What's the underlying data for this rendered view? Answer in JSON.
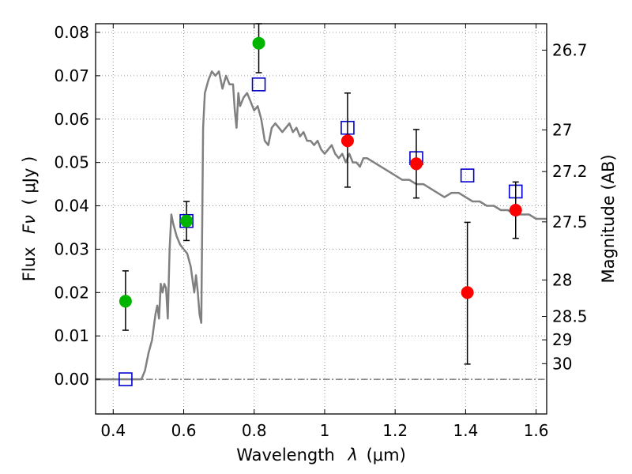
{
  "chart_data": {
    "type": "scatter",
    "xlabel_prefix": "Wavelength",
    "xlabel_symbol": "λ",
    "xlabel_unit": "(μm)",
    "ylabel_prefix": "Flux",
    "ylabel_symbol": "Fν",
    "ylabel_unit": "( μJy )",
    "y2label": "Magnitude (AB)",
    "xlim": [
      0.35,
      1.63
    ],
    "ylim": [
      -0.008,
      0.082
    ],
    "grid": true,
    "zero_line": true,
    "x_ticks": [
      0.4,
      0.6,
      0.8,
      1.0,
      1.2,
      1.4,
      1.6
    ],
    "x_tick_labels": [
      "0.4",
      "0.6",
      "0.8",
      "1",
      "1.2",
      "1.4",
      "1.6"
    ],
    "y_ticks": [
      0.0,
      0.01,
      0.02,
      0.03,
      0.04,
      0.05,
      0.06,
      0.07,
      0.08
    ],
    "y_tick_labels": [
      "0.00",
      "0.01",
      "0.02",
      "0.03",
      "0.04",
      "0.05",
      "0.06",
      "0.07",
      "0.08"
    ],
    "mag_ticks": [
      {
        "label": "26.7",
        "flux": 0.0759
      },
      {
        "label": "27",
        "flux": 0.0575
      },
      {
        "label": "27.2",
        "flux": 0.0479
      },
      {
        "label": "27.5",
        "flux": 0.0363
      },
      {
        "label": "28",
        "flux": 0.0229
      },
      {
        "label": "28.5",
        "flux": 0.0145
      },
      {
        "label": "29",
        "flux": 0.0091
      },
      {
        "label": "30",
        "flux": 0.0036
      }
    ],
    "colors": {
      "model": "#808080",
      "model_photometry": "#0000cc",
      "green_points": "#00b400",
      "red_points": "#ff0000",
      "errorbar": "#000000",
      "grid": "#999999"
    },
    "series": [
      {
        "kind": "line",
        "points": [
          [
            0.35,
            0.0
          ],
          [
            0.48,
            0.0
          ],
          [
            0.49,
            0.002
          ],
          [
            0.5,
            0.006
          ],
          [
            0.51,
            0.009
          ],
          [
            0.52,
            0.015
          ],
          [
            0.525,
            0.017
          ],
          [
            0.53,
            0.014
          ],
          [
            0.535,
            0.022
          ],
          [
            0.54,
            0.02
          ],
          [
            0.545,
            0.022
          ],
          [
            0.55,
            0.021
          ],
          [
            0.555,
            0.014
          ],
          [
            0.56,
            0.03
          ],
          [
            0.565,
            0.038
          ],
          [
            0.57,
            0.036
          ],
          [
            0.58,
            0.033
          ],
          [
            0.59,
            0.031
          ],
          [
            0.6,
            0.03
          ],
          [
            0.61,
            0.029
          ],
          [
            0.62,
            0.026
          ],
          [
            0.63,
            0.02
          ],
          [
            0.635,
            0.024
          ],
          [
            0.64,
            0.02
          ],
          [
            0.645,
            0.015
          ],
          [
            0.65,
            0.013
          ],
          [
            0.655,
            0.058
          ],
          [
            0.66,
            0.066
          ],
          [
            0.67,
            0.069
          ],
          [
            0.68,
            0.071
          ],
          [
            0.69,
            0.07
          ],
          [
            0.7,
            0.071
          ],
          [
            0.71,
            0.067
          ],
          [
            0.72,
            0.07
          ],
          [
            0.73,
            0.068
          ],
          [
            0.74,
            0.068
          ],
          [
            0.745,
            0.062
          ],
          [
            0.75,
            0.058
          ],
          [
            0.755,
            0.066
          ],
          [
            0.76,
            0.063
          ],
          [
            0.77,
            0.065
          ],
          [
            0.78,
            0.066
          ],
          [
            0.79,
            0.064
          ],
          [
            0.8,
            0.062
          ],
          [
            0.81,
            0.063
          ],
          [
            0.82,
            0.06
          ],
          [
            0.83,
            0.055
          ],
          [
            0.84,
            0.054
          ],
          [
            0.85,
            0.058
          ],
          [
            0.86,
            0.059
          ],
          [
            0.87,
            0.058
          ],
          [
            0.88,
            0.057
          ],
          [
            0.89,
            0.058
          ],
          [
            0.9,
            0.059
          ],
          [
            0.91,
            0.057
          ],
          [
            0.92,
            0.058
          ],
          [
            0.93,
            0.056
          ],
          [
            0.94,
            0.057
          ],
          [
            0.95,
            0.055
          ],
          [
            0.96,
            0.055
          ],
          [
            0.97,
            0.054
          ],
          [
            0.98,
            0.055
          ],
          [
            0.99,
            0.053
          ],
          [
            1.0,
            0.052
          ],
          [
            1.01,
            0.053
          ],
          [
            1.02,
            0.054
          ],
          [
            1.03,
            0.052
          ],
          [
            1.04,
            0.051
          ],
          [
            1.05,
            0.052
          ],
          [
            1.06,
            0.05
          ],
          [
            1.07,
            0.052
          ],
          [
            1.08,
            0.05
          ],
          [
            1.09,
            0.05
          ],
          [
            1.1,
            0.049
          ],
          [
            1.11,
            0.051
          ],
          [
            1.12,
            0.051
          ],
          [
            1.14,
            0.05
          ],
          [
            1.16,
            0.049
          ],
          [
            1.18,
            0.048
          ],
          [
            1.2,
            0.047
          ],
          [
            1.22,
            0.046
          ],
          [
            1.24,
            0.046
          ],
          [
            1.26,
            0.045
          ],
          [
            1.28,
            0.045
          ],
          [
            1.3,
            0.044
          ],
          [
            1.32,
            0.043
          ],
          [
            1.34,
            0.042
          ],
          [
            1.36,
            0.043
          ],
          [
            1.38,
            0.043
          ],
          [
            1.4,
            0.042
          ],
          [
            1.42,
            0.041
          ],
          [
            1.44,
            0.041
          ],
          [
            1.46,
            0.04
          ],
          [
            1.48,
            0.04
          ],
          [
            1.5,
            0.039
          ],
          [
            1.52,
            0.039
          ],
          [
            1.54,
            0.038
          ],
          [
            1.56,
            0.038
          ],
          [
            1.58,
            0.038
          ],
          [
            1.6,
            0.037
          ],
          [
            1.63,
            0.037
          ]
        ]
      },
      {
        "kind": "squares",
        "points": [
          [
            0.435,
            0.0
          ],
          [
            0.608,
            0.0365
          ],
          [
            0.813,
            0.068
          ],
          [
            1.065,
            0.058
          ],
          [
            1.26,
            0.051
          ],
          [
            1.405,
            0.047
          ],
          [
            1.542,
            0.0433
          ]
        ]
      },
      {
        "kind": "green_points",
        "points": [
          {
            "x": 0.435,
            "y": 0.018,
            "err": [
              0.0113,
              0.025
            ]
          },
          {
            "x": 0.608,
            "y": 0.0365,
            "err": [
              0.032,
              0.041
            ]
          },
          {
            "x": 0.813,
            "y": 0.0775,
            "err": [
              0.0707,
              0.082
            ]
          }
        ]
      },
      {
        "kind": "red_points",
        "points": [
          {
            "x": 1.065,
            "y": 0.055,
            "err": [
              0.0443,
              0.066
            ]
          },
          {
            "x": 1.26,
            "y": 0.0497,
            "err": [
              0.0418,
              0.0576
            ]
          },
          {
            "x": 1.405,
            "y": 0.02,
            "err": [
              0.0035,
              0.0362
            ]
          },
          {
            "x": 1.542,
            "y": 0.039,
            "err": [
              0.0325,
              0.0455
            ]
          }
        ]
      }
    ]
  }
}
